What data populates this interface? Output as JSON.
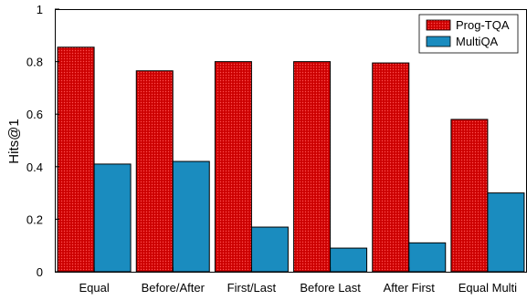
{
  "chart_data": {
    "type": "bar",
    "title": "",
    "xlabel": "",
    "ylabel": "Hits@1",
    "ylim": [
      0,
      1
    ],
    "yticks": [
      "0",
      "0.2",
      "0.4",
      "0.6",
      "0.8",
      "1"
    ],
    "categories": [
      "Equal",
      "Before/After",
      "First/Last",
      "Before Last",
      "After First",
      "Equal Multi"
    ],
    "series": [
      {
        "name": "Prog-TQA",
        "color": "#e01010",
        "pattern": "dotted",
        "values": [
          0.855,
          0.765,
          0.8,
          0.8,
          0.795,
          0.58
        ]
      },
      {
        "name": "MultiQA",
        "color": "#1a8cbf",
        "values": [
          0.41,
          0.42,
          0.17,
          0.09,
          0.11,
          0.3
        ]
      }
    ],
    "grid": false,
    "legend_position": "top-right"
  }
}
